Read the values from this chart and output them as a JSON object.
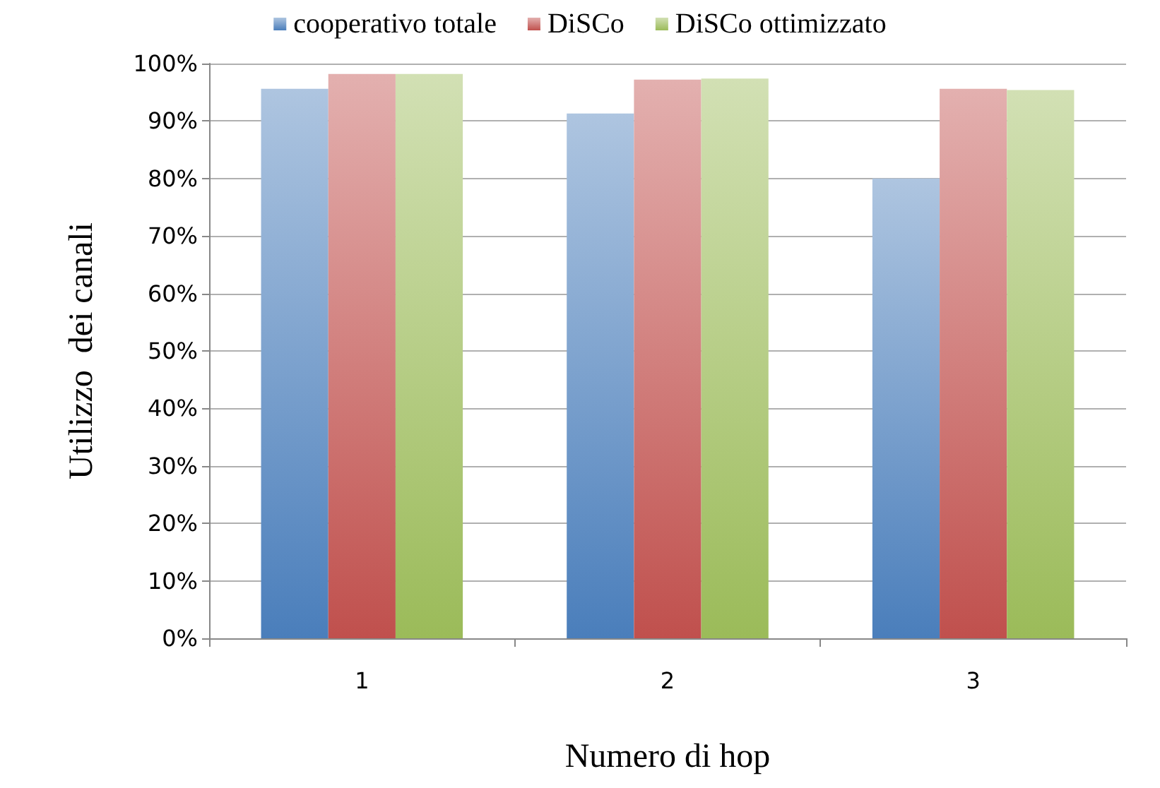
{
  "chart_data": {
    "type": "bar",
    "xlabel": "Numero di hop",
    "ylabel": "Utilizzo  dei canali",
    "categories": [
      "1",
      "2",
      "3"
    ],
    "series": [
      {
        "name": "cooperativo totale",
        "color": "#4a7ebb",
        "values": [
          95.6,
          91.3,
          80.0
        ]
      },
      {
        "name": "DiSCo",
        "color": "#c0504d",
        "values": [
          98.2,
          97.2,
          95.6
        ]
      },
      {
        "name": "DiSCo ottimizzato",
        "color": "#9bbb59",
        "values": [
          98.2,
          97.4,
          95.4
        ]
      }
    ],
    "ylim": [
      0,
      100
    ],
    "yticks": [
      {
        "value": 0,
        "label": "0%"
      },
      {
        "value": 10,
        "label": "10%"
      },
      {
        "value": 20,
        "label": "20%"
      },
      {
        "value": 30,
        "label": "30%"
      },
      {
        "value": 40,
        "label": "40%"
      },
      {
        "value": 50,
        "label": "50%"
      },
      {
        "value": 60,
        "label": "60%"
      },
      {
        "value": 70,
        "label": "70%"
      },
      {
        "value": 80,
        "label": "80%"
      },
      {
        "value": 90,
        "label": "90%"
      },
      {
        "value": 100,
        "label": "100%"
      }
    ],
    "grid": "y",
    "legend": "top"
  }
}
